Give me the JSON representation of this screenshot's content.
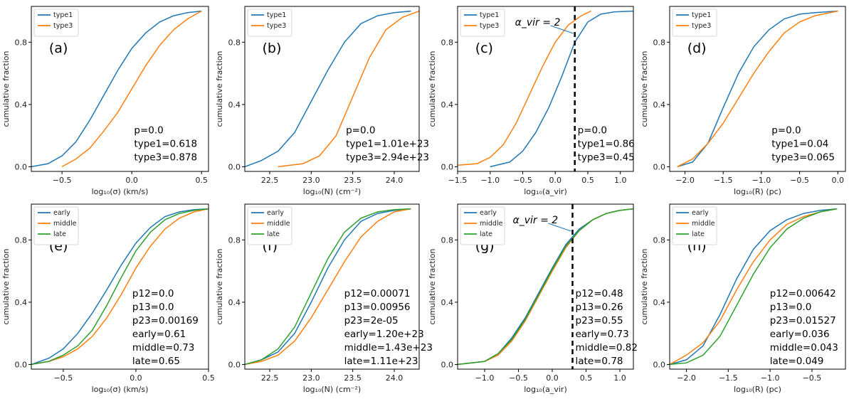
{
  "figure": {
    "colors": {
      "s1": "#1f77b4",
      "s2": "#ff7f0e",
      "s3": "#2ca02c",
      "vline": "#000000"
    }
  },
  "chart_data": [
    {
      "type": "line",
      "title": "",
      "letter": "(a)",
      "xlabel": "log₁₀(σ) (km/s)",
      "ylabel": "cumulative fraction",
      "xlim": [
        -0.72,
        0.55
      ],
      "ylim": [
        -0.03,
        1.03
      ],
      "xticks": [
        -0.5,
        0.0,
        0.5
      ],
      "xticklabels": [
        "−0.5",
        "0.0",
        "0.5"
      ],
      "yticks": [
        0.0,
        0.4,
        0.8
      ],
      "yticklabels": [
        "0.0",
        "0.4",
        "0.8"
      ],
      "stats": [
        "p=0.0",
        "type1=0.618",
        "type3=0.878"
      ],
      "series": [
        {
          "name": "type1",
          "color": "#1f77b4",
          "x": [
            -0.72,
            -0.6,
            -0.5,
            -0.4,
            -0.3,
            -0.2,
            -0.1,
            0.0,
            0.1,
            0.2,
            0.3,
            0.4,
            0.5
          ],
          "y": [
            0.0,
            0.02,
            0.07,
            0.16,
            0.3,
            0.46,
            0.62,
            0.76,
            0.86,
            0.93,
            0.97,
            0.99,
            1.0
          ]
        },
        {
          "name": "type3",
          "color": "#ff7f0e",
          "x": [
            -0.5,
            -0.4,
            -0.3,
            -0.2,
            -0.1,
            0.0,
            0.1,
            0.2,
            0.3,
            0.4,
            0.5
          ],
          "y": [
            0.0,
            0.05,
            0.12,
            0.23,
            0.35,
            0.5,
            0.65,
            0.78,
            0.88,
            0.95,
            1.0
          ]
        }
      ]
    },
    {
      "type": "line",
      "title": "",
      "letter": "(b)",
      "xlabel": "log₁₀(N) (cm⁻²)",
      "ylabel": "cumulative fraction",
      "xlim": [
        22.2,
        24.3
      ],
      "ylim": [
        -0.03,
        1.03
      ],
      "xticks": [
        22.5,
        23.0,
        23.5,
        24.0
      ],
      "xticklabels": [
        "22.5",
        "23.0",
        "23.5",
        "24.0"
      ],
      "yticks": [
        0.0,
        0.4,
        0.8
      ],
      "yticklabels": [
        "0.0",
        "0.4",
        "0.8"
      ],
      "stats": [
        "p=0.0",
        "type1=1.01e+23",
        "type3=2.94e+23"
      ],
      "series": [
        {
          "name": "type1",
          "color": "#1f77b4",
          "x": [
            22.2,
            22.4,
            22.6,
            22.8,
            23.0,
            23.2,
            23.4,
            23.6,
            23.8,
            24.0,
            24.2
          ],
          "y": [
            0.0,
            0.04,
            0.1,
            0.22,
            0.42,
            0.62,
            0.8,
            0.92,
            0.97,
            0.99,
            1.0
          ]
        },
        {
          "name": "type3",
          "color": "#ff7f0e",
          "x": [
            22.6,
            22.9,
            23.1,
            23.3,
            23.5,
            23.7,
            23.9,
            24.1,
            24.3
          ],
          "y": [
            0.0,
            0.02,
            0.07,
            0.2,
            0.45,
            0.7,
            0.88,
            0.96,
            1.0
          ]
        }
      ]
    },
    {
      "type": "line",
      "title": "",
      "letter": "(c)",
      "xlabel": "log₁₀(a_vir)",
      "ylabel": "cumulative fraction",
      "xlim": [
        -1.5,
        1.2
      ],
      "ylim": [
        -0.03,
        1.03
      ],
      "xticks": [
        -1.5,
        -1.0,
        -0.5,
        0.0,
        0.5,
        1.0
      ],
      "xticklabels": [
        "−1.5",
        "−1.0",
        "−0.5",
        "0.0",
        "0.5",
        "1.0"
      ],
      "yticks": [
        0.0,
        0.4,
        0.8
      ],
      "yticklabels": [
        "0.0",
        "0.4",
        "0.8"
      ],
      "stats": [
        "p=0.0",
        "type1=0.86",
        "type3=0.45"
      ],
      "vline": 0.3,
      "annot": "α_vir = 2",
      "series": [
        {
          "name": "type1",
          "color": "#1f77b4",
          "x": [
            -1.0,
            -0.7,
            -0.5,
            -0.3,
            -0.1,
            0.1,
            0.3,
            0.5,
            0.7,
            0.9,
            1.2
          ],
          "y": [
            0.0,
            0.03,
            0.1,
            0.22,
            0.38,
            0.58,
            0.8,
            0.93,
            0.98,
            0.995,
            1.0
          ]
        },
        {
          "name": "type3",
          "color": "#ff7f0e",
          "x": [
            -1.5,
            -1.2,
            -1.0,
            -0.8,
            -0.6,
            -0.4,
            -0.2,
            0.0,
            0.2,
            0.4,
            0.55
          ],
          "y": [
            0.01,
            0.02,
            0.06,
            0.14,
            0.28,
            0.46,
            0.64,
            0.8,
            0.91,
            0.97,
            1.0
          ]
        }
      ]
    },
    {
      "type": "line",
      "title": "",
      "letter": "(d)",
      "xlabel": "log₁₀(R) (pc)",
      "ylabel": "cumulative fraction",
      "xlim": [
        -2.2,
        0.1
      ],
      "ylim": [
        -0.03,
        1.03
      ],
      "xticks": [
        -2.0,
        -1.5,
        -1.0,
        -0.5,
        0.0
      ],
      "xticklabels": [
        "−2.0",
        "−1.5",
        "−1.0",
        "−0.5",
        "0.0"
      ],
      "yticks": [
        0.0,
        0.4,
        0.8
      ],
      "yticklabels": [
        "0.0",
        "0.4",
        "0.8"
      ],
      "stats": [
        "p=0.0",
        "type1=0.04",
        "type3=0.065"
      ],
      "series": [
        {
          "name": "type1",
          "color": "#1f77b4",
          "x": [
            -2.1,
            -1.9,
            -1.7,
            -1.5,
            -1.3,
            -1.1,
            -0.9,
            -0.7,
            -0.5,
            -0.3,
            0.0
          ],
          "y": [
            0.0,
            0.03,
            0.15,
            0.38,
            0.6,
            0.77,
            0.88,
            0.95,
            0.98,
            0.99,
            1.0
          ]
        },
        {
          "name": "type3",
          "color": "#ff7f0e",
          "x": [
            -2.1,
            -1.9,
            -1.7,
            -1.5,
            -1.3,
            -1.1,
            -0.9,
            -0.7,
            -0.5,
            -0.3,
            0.0
          ],
          "y": [
            0.0,
            0.05,
            0.15,
            0.28,
            0.44,
            0.6,
            0.74,
            0.86,
            0.93,
            0.97,
            1.0
          ]
        }
      ]
    },
    {
      "type": "line",
      "title": "",
      "letter": "(e)",
      "xlabel": "log₁₀(σ) (km/s)",
      "ylabel": "cumulative fraction",
      "xlim": [
        -0.72,
        0.5
      ],
      "ylim": [
        -0.03,
        1.03
      ],
      "xticks": [
        -0.5,
        0.0,
        0.5
      ],
      "xticklabels": [
        "−0.5",
        "0.0",
        "0.5"
      ],
      "yticks": [
        0.0,
        0.4,
        0.8
      ],
      "yticklabels": [
        "0.0",
        "0.4",
        "0.8"
      ],
      "stats": [
        "p12=0.0",
        "p13=0.0",
        "p23=0.00169",
        "early=0.61",
        "middle=0.73",
        "late=0.65"
      ],
      "series": [
        {
          "name": "early",
          "color": "#1f77b4",
          "x": [
            -0.72,
            -0.6,
            -0.5,
            -0.4,
            -0.3,
            -0.2,
            -0.1,
            0.0,
            0.1,
            0.2,
            0.3,
            0.4,
            0.5
          ],
          "y": [
            0.0,
            0.04,
            0.1,
            0.2,
            0.33,
            0.48,
            0.64,
            0.78,
            0.88,
            0.95,
            0.98,
            0.995,
            1.0
          ]
        },
        {
          "name": "middle",
          "color": "#ff7f0e",
          "x": [
            -0.72,
            -0.6,
            -0.5,
            -0.4,
            -0.3,
            -0.2,
            -0.1,
            0.0,
            0.1,
            0.2,
            0.3,
            0.4,
            0.5
          ],
          "y": [
            0.0,
            0.02,
            0.05,
            0.1,
            0.18,
            0.3,
            0.45,
            0.62,
            0.76,
            0.87,
            0.94,
            0.98,
            1.0
          ]
        },
        {
          "name": "late",
          "color": "#2ca02c",
          "x": [
            -0.72,
            -0.6,
            -0.5,
            -0.4,
            -0.3,
            -0.2,
            -0.1,
            0.0,
            0.1,
            0.2,
            0.3,
            0.4,
            0.5
          ],
          "y": [
            0.0,
            0.02,
            0.06,
            0.12,
            0.22,
            0.38,
            0.56,
            0.73,
            0.85,
            0.93,
            0.97,
            0.99,
            1.0
          ]
        }
      ]
    },
    {
      "type": "line",
      "title": "",
      "letter": "(f)",
      "xlabel": "log₁₀(N) (cm⁻²)",
      "ylabel": "cumulative fraction",
      "xlim": [
        22.2,
        24.3
      ],
      "ylim": [
        -0.03,
        1.03
      ],
      "xticks": [
        22.5,
        23.0,
        23.5,
        24.0
      ],
      "xticklabels": [
        "22.5",
        "23.0",
        "23.5",
        "24.0"
      ],
      "yticks": [
        0.0,
        0.4,
        0.8
      ],
      "yticklabels": [
        "0.0",
        "0.4",
        "0.8"
      ],
      "stats": [
        "p12=0.00071",
        "p13=0.00956",
        "p23=2e-05",
        "early=1.20e+23",
        "middle=1.43e+23",
        "late=1.11e+23"
      ],
      "series": [
        {
          "name": "early",
          "color": "#1f77b4",
          "x": [
            22.2,
            22.4,
            22.6,
            22.8,
            23.0,
            23.2,
            23.4,
            23.6,
            23.8,
            24.0,
            24.2
          ],
          "y": [
            0.0,
            0.03,
            0.08,
            0.2,
            0.4,
            0.62,
            0.8,
            0.92,
            0.97,
            0.99,
            1.0
          ]
        },
        {
          "name": "middle",
          "color": "#ff7f0e",
          "x": [
            22.2,
            22.4,
            22.6,
            22.8,
            23.0,
            23.2,
            23.4,
            23.6,
            23.8,
            24.0,
            24.2
          ],
          "y": [
            0.0,
            0.02,
            0.06,
            0.15,
            0.3,
            0.48,
            0.66,
            0.82,
            0.92,
            0.98,
            1.0
          ]
        },
        {
          "name": "late",
          "color": "#2ca02c",
          "x": [
            22.2,
            22.4,
            22.6,
            22.8,
            23.0,
            23.2,
            23.4,
            23.6,
            23.8,
            24.0,
            24.2
          ],
          "y": [
            0.0,
            0.03,
            0.1,
            0.24,
            0.46,
            0.68,
            0.85,
            0.94,
            0.98,
            0.995,
            1.0
          ]
        }
      ]
    },
    {
      "type": "line",
      "title": "",
      "letter": "(g)",
      "xlabel": "log₁₀(a_vir)",
      "ylabel": "cumulative fraction",
      "xlim": [
        -1.4,
        1.2
      ],
      "ylim": [
        -0.03,
        1.03
      ],
      "xticks": [
        -1.0,
        -0.5,
        0.0,
        0.5,
        1.0
      ],
      "xticklabels": [
        "−1.0",
        "−0.5",
        "0.0",
        "0.5",
        "1.0"
      ],
      "yticks": [
        0.0,
        0.4,
        0.8
      ],
      "yticklabels": [
        "0.0",
        "0.4",
        "0.8"
      ],
      "stats": [
        "p12=0.48",
        "p13=0.26",
        "p23=0.55",
        "early=0.73",
        "middle=0.82",
        "late=0.78"
      ],
      "vline": 0.3,
      "annot": "α_vir = 2",
      "series": [
        {
          "name": "early",
          "color": "#1f77b4",
          "x": [
            -1.4,
            -1.0,
            -0.8,
            -0.6,
            -0.4,
            -0.2,
            0.0,
            0.2,
            0.4,
            0.6,
            0.8,
            1.0,
            1.2
          ],
          "y": [
            0.0,
            0.02,
            0.07,
            0.17,
            0.3,
            0.46,
            0.62,
            0.77,
            0.87,
            0.93,
            0.97,
            0.99,
            1.0
          ]
        },
        {
          "name": "middle",
          "color": "#ff7f0e",
          "x": [
            -1.4,
            -1.0,
            -0.8,
            -0.6,
            -0.4,
            -0.2,
            0.0,
            0.2,
            0.4,
            0.6,
            0.8,
            1.0,
            1.2
          ],
          "y": [
            0.0,
            0.02,
            0.06,
            0.15,
            0.28,
            0.44,
            0.6,
            0.75,
            0.86,
            0.93,
            0.97,
            0.99,
            1.0
          ]
        },
        {
          "name": "late",
          "color": "#2ca02c",
          "x": [
            -1.4,
            -1.0,
            -0.8,
            -0.6,
            -0.4,
            -0.2,
            0.0,
            0.2,
            0.4,
            0.6,
            0.8,
            1.0,
            1.2
          ],
          "y": [
            0.0,
            0.02,
            0.07,
            0.16,
            0.29,
            0.45,
            0.61,
            0.76,
            0.86,
            0.93,
            0.97,
            0.99,
            1.0
          ]
        }
      ]
    },
    {
      "type": "line",
      "title": "",
      "letter": "(h)",
      "xlabel": "log₁₀(R) (pc)",
      "ylabel": "cumulative fraction",
      "xlim": [
        -2.2,
        -0.1
      ],
      "ylim": [
        -0.03,
        1.03
      ],
      "xticks": [
        -2.0,
        -1.5,
        -1.0,
        -0.5
      ],
      "xticklabels": [
        "−2.0",
        "−1.5",
        "−1.0",
        "−0.5"
      ],
      "yticks": [
        0.0,
        0.4,
        0.8
      ],
      "yticklabels": [
        "0.0",
        "0.4",
        "0.8"
      ],
      "stats": [
        "p12=0.00642",
        "p13=0.0",
        "p23=0.01527",
        "early=0.036",
        "middle=0.043",
        "late=0.049"
      ],
      "series": [
        {
          "name": "early",
          "color": "#1f77b4",
          "x": [
            -2.2,
            -2.0,
            -1.8,
            -1.6,
            -1.4,
            -1.2,
            -1.0,
            -0.8,
            -0.6,
            -0.4,
            -0.2
          ],
          "y": [
            0.0,
            0.03,
            0.12,
            0.32,
            0.55,
            0.74,
            0.86,
            0.93,
            0.97,
            0.99,
            1.0
          ]
        },
        {
          "name": "middle",
          "color": "#ff7f0e",
          "x": [
            -2.2,
            -2.0,
            -1.8,
            -1.6,
            -1.4,
            -1.2,
            -1.0,
            -0.8,
            -0.6,
            -0.4,
            -0.2
          ],
          "y": [
            0.0,
            0.06,
            0.14,
            0.28,
            0.48,
            0.66,
            0.8,
            0.9,
            0.95,
            0.98,
            1.0
          ]
        },
        {
          "name": "late",
          "color": "#2ca02c",
          "x": [
            -2.2,
            -2.0,
            -1.8,
            -1.6,
            -1.4,
            -1.2,
            -1.0,
            -0.8,
            -0.6,
            -0.4,
            -0.2
          ],
          "y": [
            0.0,
            0.01,
            0.06,
            0.18,
            0.38,
            0.58,
            0.75,
            0.87,
            0.94,
            0.98,
            1.0
          ]
        }
      ]
    }
  ]
}
